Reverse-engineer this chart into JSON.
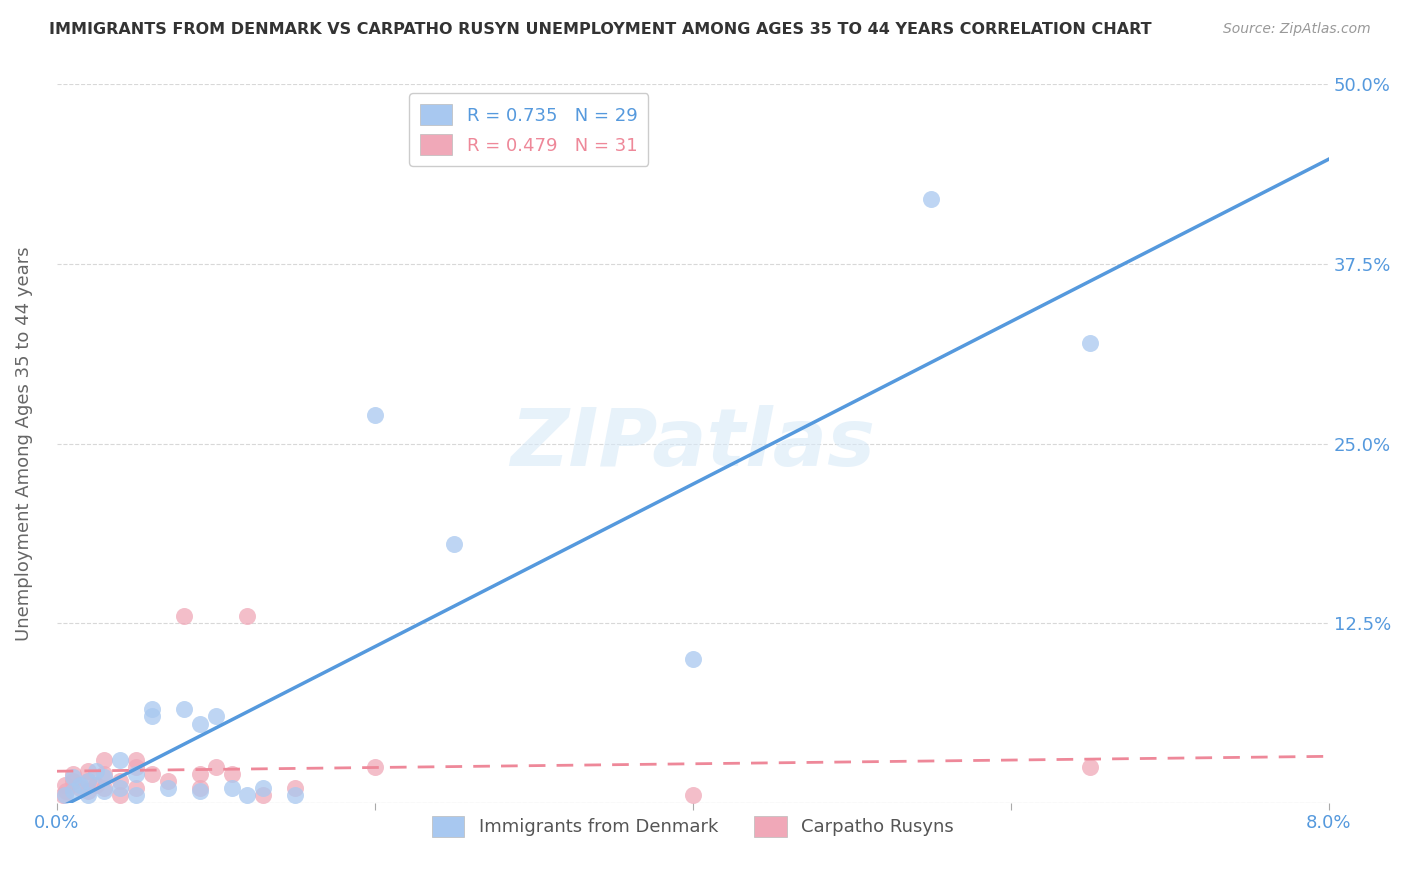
{
  "title": "IMMIGRANTS FROM DENMARK VS CARPATHO RUSYN UNEMPLOYMENT AMONG AGES 35 TO 44 YEARS CORRELATION CHART",
  "source": "Source: ZipAtlas.com",
  "xlabel": "",
  "ylabel": "Unemployment Among Ages 35 to 44 years",
  "xlim": [
    0.0,
    0.08
  ],
  "ylim": [
    0.0,
    0.5
  ],
  "xticks": [
    0.0,
    0.02,
    0.04,
    0.06,
    0.08
  ],
  "xtick_labels": [
    "0.0%",
    "",
    "",
    "",
    "8.0%"
  ],
  "yticks": [
    0.0,
    0.125,
    0.25,
    0.375,
    0.5
  ],
  "ytick_labels": [
    "",
    "12.5%",
    "25.0%",
    "37.5%",
    "50.0%"
  ],
  "legend_entry1_R": "0.735",
  "legend_entry1_N": "29",
  "legend_entry2_R": "0.479",
  "legend_entry2_N": "31",
  "blue_color": "#a8c8f0",
  "pink_color": "#f0a8b8",
  "blue_line_color": "#5599dd",
  "pink_line_color": "#ee8899",
  "watermark": "ZIPatlas",
  "denmark_points": [
    [
      0.0005,
      0.005
    ],
    [
      0.001,
      0.008
    ],
    [
      0.0015,
      0.012
    ],
    [
      0.001,
      0.018
    ],
    [
      0.002,
      0.005
    ],
    [
      0.002,
      0.015
    ],
    [
      0.0025,
      0.022
    ],
    [
      0.003,
      0.008
    ],
    [
      0.003,
      0.018
    ],
    [
      0.004,
      0.01
    ],
    [
      0.004,
      0.03
    ],
    [
      0.005,
      0.005
    ],
    [
      0.005,
      0.02
    ],
    [
      0.006,
      0.06
    ],
    [
      0.006,
      0.065
    ],
    [
      0.007,
      0.01
    ],
    [
      0.008,
      0.065
    ],
    [
      0.009,
      0.008
    ],
    [
      0.009,
      0.055
    ],
    [
      0.01,
      0.06
    ],
    [
      0.011,
      0.01
    ],
    [
      0.012,
      0.005
    ],
    [
      0.013,
      0.01
    ],
    [
      0.015,
      0.005
    ],
    [
      0.02,
      0.27
    ],
    [
      0.025,
      0.18
    ],
    [
      0.04,
      0.1
    ],
    [
      0.055,
      0.42
    ],
    [
      0.065,
      0.32
    ]
  ],
  "rusyn_points": [
    [
      0.0004,
      0.005
    ],
    [
      0.0005,
      0.012
    ],
    [
      0.0006,
      0.008
    ],
    [
      0.001,
      0.015
    ],
    [
      0.001,
      0.02
    ],
    [
      0.0015,
      0.01
    ],
    [
      0.002,
      0.008
    ],
    [
      0.002,
      0.015
    ],
    [
      0.002,
      0.022
    ],
    [
      0.0025,
      0.012
    ],
    [
      0.003,
      0.02
    ],
    [
      0.003,
      0.03
    ],
    [
      0.003,
      0.01
    ],
    [
      0.004,
      0.005
    ],
    [
      0.004,
      0.015
    ],
    [
      0.005,
      0.01
    ],
    [
      0.005,
      0.025
    ],
    [
      0.005,
      0.03
    ],
    [
      0.006,
      0.02
    ],
    [
      0.007,
      0.015
    ],
    [
      0.008,
      0.13
    ],
    [
      0.009,
      0.02
    ],
    [
      0.009,
      0.01
    ],
    [
      0.01,
      0.025
    ],
    [
      0.011,
      0.02
    ],
    [
      0.012,
      0.13
    ],
    [
      0.013,
      0.005
    ],
    [
      0.015,
      0.01
    ],
    [
      0.02,
      0.025
    ],
    [
      0.04,
      0.005
    ],
    [
      0.065,
      0.025
    ]
  ],
  "background_color": "#ffffff",
  "grid_color": "#d8d8d8",
  "title_color": "#333333",
  "axis_color": "#5599dd",
  "pink_label_color": "#ee8899"
}
